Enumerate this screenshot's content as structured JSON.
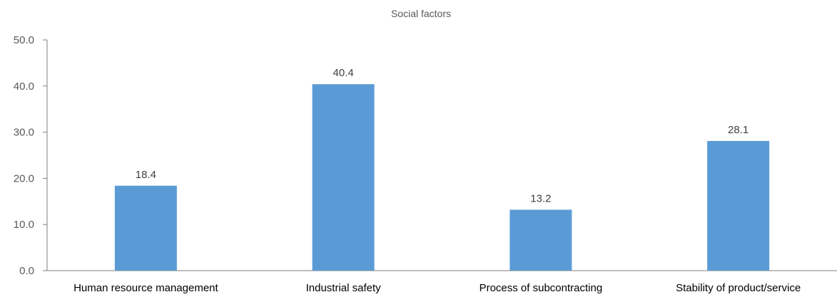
{
  "chart_data": {
    "type": "bar",
    "title": "Social factors",
    "categories": [
      "Human resource management",
      "Industrial safety",
      "Process of subcontracting",
      "Stability of product/service"
    ],
    "values": [
      18.4,
      40.4,
      13.2,
      28.1
    ],
    "value_labels": [
      "18.4",
      "40.4",
      "13.2",
      "28.1"
    ],
    "xlabel": "",
    "ylabel": "",
    "ylim": [
      0,
      50
    ],
    "y_ticks": [
      "0.0",
      "10.0",
      "20.0",
      "30.0",
      "40.0",
      "50.0"
    ],
    "grid": false,
    "legend": "none",
    "colors": {
      "bar": "#5b9bd5",
      "axis": "#7f7f7f",
      "text": "#595959",
      "label_text": "#404040"
    }
  }
}
